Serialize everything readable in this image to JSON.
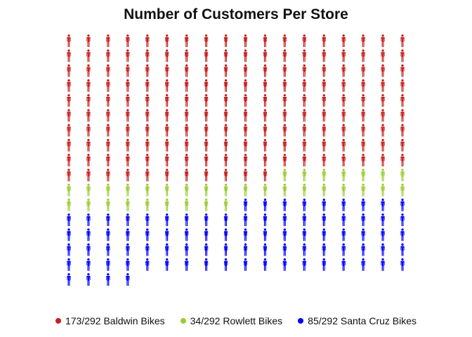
{
  "chart_data": {
    "type": "pictogram",
    "title": "Number of Customers Per Store",
    "total": 292,
    "rows": 17,
    "columns": 18,
    "icon": "person-icon",
    "fill_order": "left-to-right, top-to-bottom",
    "series": [
      {
        "name": "Baldwin Bikes",
        "value": 173,
        "label": "173/292 Baldwin Bikes",
        "color": "#c81f1f"
      },
      {
        "name": "Rowlett Bikes",
        "value": 34,
        "label": "34/292 Rowlett Bikes",
        "color": "#9acd32"
      },
      {
        "name": "Santa Cruz Bikes",
        "value": 85,
        "label": "85/292 Santa Cruz Bikes",
        "color": "#0000ff"
      }
    ],
    "legend_position": "bottom"
  }
}
